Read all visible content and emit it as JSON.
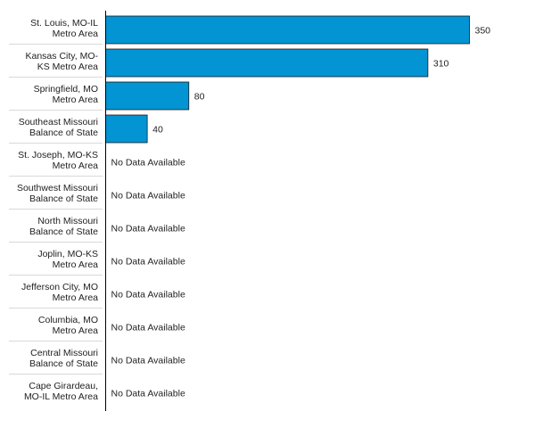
{
  "chart_data": {
    "type": "bar",
    "orientation": "horizontal",
    "categories": [
      [
        "St. Louis, MO-IL",
        "Metro Area"
      ],
      [
        "Kansas City, MO-",
        "KS Metro Area"
      ],
      [
        "Springfield, MO",
        "Metro Area"
      ],
      [
        "Southeast Missouri",
        "Balance of State"
      ],
      [
        "St. Joseph, MO-KS",
        "Metro Area"
      ],
      [
        "Southwest Missouri",
        "Balance of State"
      ],
      [
        "North Missouri",
        "Balance of State"
      ],
      [
        "Joplin, MO-KS",
        "Metro Area"
      ],
      [
        "Jefferson City, MO",
        "Metro Area"
      ],
      [
        "Columbia, MO",
        "Metro Area"
      ],
      [
        "Central Missouri",
        "Balance of State"
      ],
      [
        "Cape Girardeau,",
        "MO-IL Metro Area"
      ]
    ],
    "values": [
      350,
      310,
      80,
      40,
      null,
      null,
      null,
      null,
      null,
      null,
      null,
      null
    ],
    "missing_label": "No Data Available",
    "xlim": [
      0,
      350
    ],
    "bar_color": "#0394d4",
    "grid": false,
    "legend": "none",
    "title": "",
    "xlabel": "",
    "ylabel": ""
  }
}
